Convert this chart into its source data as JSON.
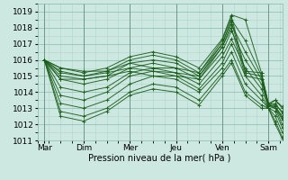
{
  "xlabel": "Pression niveau de la mer( hPa )",
  "bg_color": "#cce8e0",
  "grid_color_minor": "#b0d4cc",
  "grid_color_major": "#88bbb0",
  "line_color": "#1a5c1a",
  "ylim": [
    1011,
    1019.5
  ],
  "xlim": [
    0,
    5.3
  ],
  "yticks": [
    1011,
    1012,
    1013,
    1014,
    1015,
    1016,
    1017,
    1018,
    1019
  ],
  "day_positions": [
    0.15,
    1.0,
    2.0,
    3.0,
    4.0,
    5.0
  ],
  "day_labels": [
    "Mar",
    "Dim",
    "Mer",
    "Jeu",
    "Ven",
    "Sam"
  ],
  "vline_positions": [
    0.15,
    1.0,
    2.0,
    3.0,
    4.0,
    5.0
  ],
  "series": [
    {
      "x": [
        0.15,
        0.5,
        1.0,
        1.5,
        2.0,
        2.5,
        3.0,
        3.5,
        4.0,
        4.2,
        4.5,
        4.85,
        5.0,
        5.15,
        5.3
      ],
      "y": [
        1016.0,
        1015.5,
        1015.2,
        1015.5,
        1016.2,
        1016.5,
        1016.2,
        1015.5,
        1017.3,
        1018.8,
        1018.5,
        1015.2,
        1013.3,
        1013.5,
        1013.0
      ]
    },
    {
      "x": [
        0.15,
        0.5,
        1.0,
        1.5,
        2.0,
        2.5,
        3.0,
        3.5,
        4.0,
        4.2,
        4.5,
        4.85,
        5.0,
        5.15,
        5.3
      ],
      "y": [
        1016.0,
        1015.3,
        1015.0,
        1015.3,
        1016.0,
        1016.3,
        1016.0,
        1015.2,
        1017.0,
        1018.5,
        1017.2,
        1015.0,
        1013.3,
        1013.2,
        1012.8
      ]
    },
    {
      "x": [
        0.15,
        0.5,
        1.0,
        1.5,
        2.0,
        2.5,
        3.0,
        3.5,
        4.0,
        4.2,
        4.5,
        4.85,
        5.0,
        5.15,
        5.3
      ],
      "y": [
        1016.0,
        1015.0,
        1014.8,
        1015.0,
        1015.8,
        1016.0,
        1015.8,
        1015.0,
        1016.8,
        1018.2,
        1016.5,
        1014.8,
        1013.2,
        1013.1,
        1012.5
      ]
    },
    {
      "x": [
        0.15,
        0.5,
        1.0,
        1.5,
        2.0,
        2.5,
        3.0,
        3.5,
        4.0,
        4.2,
        4.5,
        4.85,
        5.0,
        5.15,
        5.3
      ],
      "y": [
        1016.0,
        1014.8,
        1014.5,
        1014.8,
        1015.5,
        1015.8,
        1015.5,
        1014.8,
        1016.5,
        1017.8,
        1016.0,
        1014.5,
        1013.2,
        1013.0,
        1012.3
      ]
    },
    {
      "x": [
        0.15,
        0.5,
        1.0,
        1.5,
        2.0,
        2.5,
        3.0,
        3.5,
        4.0,
        4.2,
        4.5,
        4.85,
        5.0,
        5.15,
        5.3
      ],
      "y": [
        1016.0,
        1014.3,
        1014.0,
        1014.3,
        1015.2,
        1015.5,
        1015.2,
        1014.5,
        1016.2,
        1017.3,
        1015.5,
        1014.2,
        1013.1,
        1013.0,
        1012.0
      ]
    },
    {
      "x": [
        0.15,
        0.5,
        1.0,
        1.5,
        2.0,
        2.5,
        3.0,
        3.5,
        4.0,
        4.2,
        4.5,
        4.85,
        5.0,
        5.15,
        5.3
      ],
      "y": [
        1016.0,
        1013.8,
        1013.5,
        1014.0,
        1015.0,
        1015.3,
        1015.0,
        1014.2,
        1015.8,
        1017.0,
        1015.0,
        1013.8,
        1013.0,
        1012.8,
        1011.8
      ]
    },
    {
      "x": [
        0.15,
        0.5,
        1.0,
        1.5,
        2.0,
        2.5,
        3.0,
        3.5,
        4.0,
        4.2,
        4.5,
        4.85,
        5.0,
        5.15,
        5.3
      ],
      "y": [
        1016.0,
        1013.3,
        1013.0,
        1013.5,
        1014.5,
        1015.0,
        1014.8,
        1014.0,
        1015.5,
        1016.5,
        1014.5,
        1013.5,
        1013.0,
        1012.5,
        1011.5
      ]
    },
    {
      "x": [
        0.15,
        0.5,
        1.0,
        1.5,
        2.0,
        2.5,
        3.0,
        3.5,
        4.0,
        4.2,
        4.5,
        4.85,
        5.0,
        5.15,
        5.3
      ],
      "y": [
        1016.0,
        1012.8,
        1012.5,
        1013.0,
        1014.0,
        1014.5,
        1014.3,
        1013.5,
        1015.2,
        1016.0,
        1014.0,
        1013.2,
        1013.0,
        1012.2,
        1011.2
      ]
    },
    {
      "x": [
        0.15,
        0.5,
        1.0,
        1.5,
        2.0,
        2.5,
        3.0,
        3.5,
        4.0,
        4.2,
        4.5,
        4.85,
        5.0,
        5.15,
        5.3
      ],
      "y": [
        1016.0,
        1012.5,
        1012.2,
        1012.8,
        1013.8,
        1014.2,
        1014.0,
        1013.2,
        1015.0,
        1015.8,
        1013.8,
        1013.0,
        1013.0,
        1012.0,
        1011.1
      ]
    },
    {
      "x": [
        0.15,
        0.5,
        1.0,
        1.5,
        2.0,
        2.5,
        3.0,
        3.5,
        4.0,
        4.2,
        4.5,
        4.85,
        5.0,
        5.15,
        5.3
      ],
      "y": [
        1016.0,
        1015.5,
        1015.3,
        1015.3,
        1015.8,
        1015.5,
        1015.5,
        1015.2,
        1017.2,
        1018.7,
        1015.3,
        1015.2,
        1013.2,
        1013.5,
        1013.1
      ]
    },
    {
      "x": [
        0.15,
        0.5,
        1.0,
        1.5,
        2.0,
        2.5,
        3.0,
        3.5,
        4.0,
        4.2,
        4.5,
        4.85,
        5.0,
        5.15,
        5.3
      ],
      "y": [
        1016.0,
        1015.2,
        1015.0,
        1015.2,
        1015.5,
        1015.3,
        1015.2,
        1015.0,
        1017.0,
        1018.4,
        1015.2,
        1015.0,
        1013.2,
        1013.3,
        1012.7
      ]
    },
    {
      "x": [
        0.15,
        0.5,
        1.0,
        1.5,
        2.0,
        2.5,
        3.0,
        3.5,
        4.0,
        4.2,
        4.5,
        4.85,
        5.0,
        5.15,
        5.3
      ],
      "y": [
        1016.0,
        1014.8,
        1014.8,
        1015.0,
        1015.3,
        1015.0,
        1015.0,
        1014.8,
        1016.8,
        1018.0,
        1015.0,
        1014.8,
        1013.2,
        1013.1,
        1012.4
      ]
    }
  ]
}
